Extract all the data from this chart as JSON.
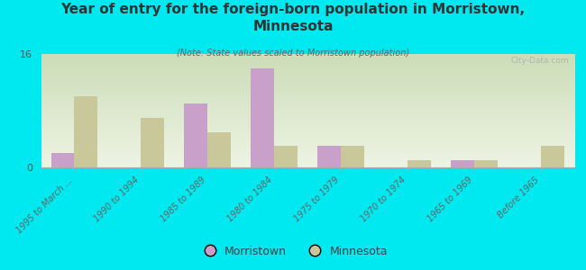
{
  "title": "Year of entry for the foreign-born population in Morristown,\nMinnesota",
  "subtitle": "(Note: State values scaled to Morristown population)",
  "categories": [
    "1995 to March ...",
    "1990 to 1994",
    "1985 to 1989",
    "1980 to 1984",
    "1975 to 1979",
    "1970 to 1974",
    "1965 to 1969",
    "Before 1965"
  ],
  "morristown_values": [
    2,
    0,
    9,
    14,
    3,
    0,
    1,
    0
  ],
  "minnesota_values": [
    10,
    7,
    5,
    3,
    3,
    1,
    1,
    3
  ],
  "morristown_color": "#c9a0c9",
  "minnesota_color": "#c8c89a",
  "background_top": "#ccddb8",
  "background_bottom": "#eef4e4",
  "ylim": [
    0,
    16
  ],
  "yticks": [
    0,
    16
  ],
  "bar_width": 0.35,
  "bg_color": "#00e8f0",
  "watermark": "City-Data.com"
}
